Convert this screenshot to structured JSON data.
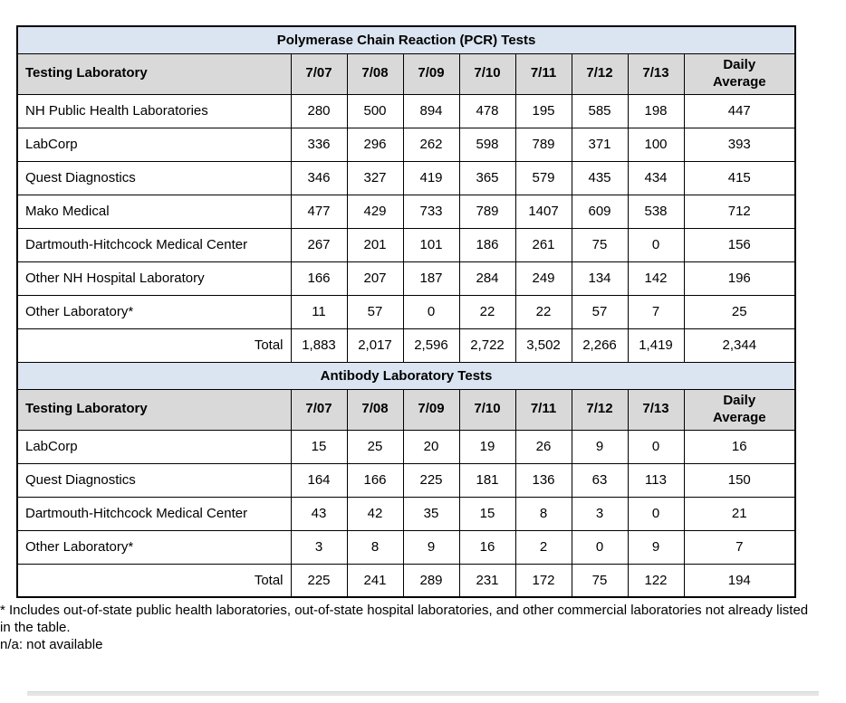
{
  "colors": {
    "title_bg": "#dbe5f1",
    "header_bg": "#d9d9d9",
    "border": "#000000"
  },
  "tables": [
    {
      "title": "Polymerase Chain Reaction (PCR) Tests",
      "columns": [
        "Testing Laboratory",
        "7/07",
        "7/08",
        "7/09",
        "7/10",
        "7/11",
        "7/12",
        "7/13",
        "Daily\nAverage"
      ],
      "rows": [
        {
          "label": "NH Public Health Laboratories",
          "values": [
            "280",
            "500",
            "894",
            "478",
            "195",
            "585",
            "198",
            "447"
          ]
        },
        {
          "label": "LabCorp",
          "values": [
            "336",
            "296",
            "262",
            "598",
            "789",
            "371",
            "100",
            "393"
          ]
        },
        {
          "label": "Quest Diagnostics",
          "values": [
            "346",
            "327",
            "419",
            "365",
            "579",
            "435",
            "434",
            "415"
          ]
        },
        {
          "label": "Mako Medical",
          "values": [
            "477",
            "429",
            "733",
            "789",
            "1407",
            "609",
            "538",
            "712"
          ]
        },
        {
          "label": "Dartmouth-Hitchcock Medical Center",
          "values": [
            "267",
            "201",
            "101",
            "186",
            "261",
            "75",
            "0",
            "156"
          ]
        },
        {
          "label": "Other NH Hospital Laboratory",
          "values": [
            "166",
            "207",
            "187",
            "284",
            "249",
            "134",
            "142",
            "196"
          ]
        },
        {
          "label": "Other Laboratory*",
          "values": [
            "11",
            "57",
            "0",
            "22",
            "22",
            "57",
            "7",
            "25"
          ]
        }
      ],
      "total": {
        "label": "Total",
        "values": [
          "1,883",
          "2,017",
          "2,596",
          "2,722",
          "3,502",
          "2,266",
          "1,419",
          "2,344"
        ]
      }
    },
    {
      "title": "Antibody Laboratory Tests",
      "columns": [
        "Testing Laboratory",
        "7/07",
        "7/08",
        "7/09",
        "7/10",
        "7/11",
        "7/12",
        "7/13",
        "Daily\nAverage"
      ],
      "rows": [
        {
          "label": "LabCorp",
          "values": [
            "15",
            "25",
            "20",
            "19",
            "26",
            "9",
            "0",
            "16"
          ]
        },
        {
          "label": "Quest Diagnostics",
          "values": [
            "164",
            "166",
            "225",
            "181",
            "136",
            "63",
            "113",
            "150"
          ]
        },
        {
          "label": "Dartmouth-Hitchcock Medical Center",
          "values": [
            "43",
            "42",
            "35",
            "15",
            "8",
            "3",
            "0",
            "21"
          ]
        },
        {
          "label": "Other Laboratory*",
          "values": [
            "3",
            "8",
            "9",
            "16",
            "2",
            "0",
            "9",
            "7"
          ]
        }
      ],
      "total": {
        "label": "Total",
        "values": [
          "225",
          "241",
          "289",
          "231",
          "172",
          "75",
          "122",
          "194"
        ]
      }
    }
  ],
  "footnotes": [
    "* Includes out-of-state public health laboratories, out-of-state hospital laboratories, and other commercial laboratories not already listed in the table.",
    "n/a: not available"
  ]
}
